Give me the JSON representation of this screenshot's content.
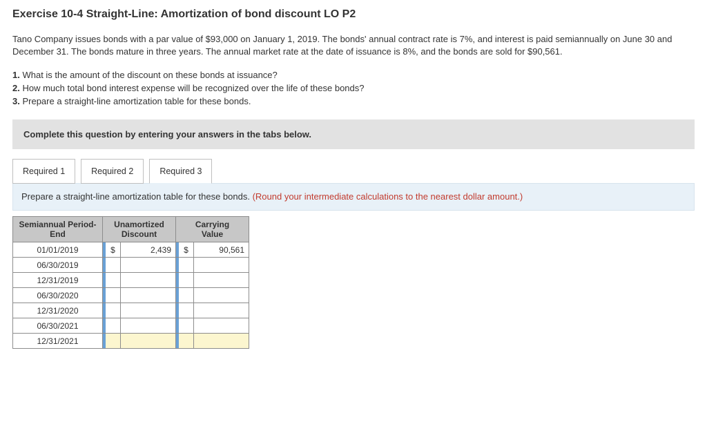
{
  "title": "Exercise 10-4 Straight-Line: Amortization of bond discount LO P2",
  "problem": "Tano Company issues bonds with a par value of $93,000 on January 1, 2019. The bonds' annual contract rate is 7%, and interest is paid semiannually on June 30 and December 31. The bonds mature in three years. The annual market rate at the date of issuance is 8%, and the bonds are sold for $90,561.",
  "questions": {
    "q1": "What is the amount of the discount on these bonds at issuance?",
    "q2": "How much total bond interest expense will be recognized over the life of these bonds?",
    "q3": "Prepare a straight-line amortization table for these bonds."
  },
  "instruction_bar": "Complete this question by entering your answers in the tabs below.",
  "tabs": {
    "t1": "Required 1",
    "t2": "Required 2",
    "t3": "Required 3"
  },
  "active_tab_prompt": {
    "main": "Prepare a straight-line amortization table for these bonds. ",
    "hint": "(Round your intermediate calculations to the nearest dollar amount.)"
  },
  "table": {
    "headers": {
      "period": "Semiannual Period-\nEnd",
      "discount": "Unamortized\nDiscount",
      "carrying": "Carrying\nValue"
    },
    "rows": [
      {
        "date": "01/01/2019",
        "disc_cur": "$",
        "disc_val": "2,439",
        "carry_cur": "$",
        "carry_val": "90,561",
        "hl": false
      },
      {
        "date": "06/30/2019",
        "disc_cur": "",
        "disc_val": "",
        "carry_cur": "",
        "carry_val": "",
        "hl": false
      },
      {
        "date": "12/31/2019",
        "disc_cur": "",
        "disc_val": "",
        "carry_cur": "",
        "carry_val": "",
        "hl": false
      },
      {
        "date": "06/30/2020",
        "disc_cur": "",
        "disc_val": "",
        "carry_cur": "",
        "carry_val": "",
        "hl": false
      },
      {
        "date": "12/31/2020",
        "disc_cur": "",
        "disc_val": "",
        "carry_cur": "",
        "carry_val": "",
        "hl": false
      },
      {
        "date": "06/30/2021",
        "disc_cur": "",
        "disc_val": "",
        "carry_cur": "",
        "carry_val": "",
        "hl": false
      },
      {
        "date": "12/31/2021",
        "disc_cur": "",
        "disc_val": "",
        "carry_cur": "",
        "carry_val": "",
        "hl": true
      }
    ]
  },
  "colors": {
    "instruction_bg": "#e2e2e2",
    "tab_panel_bg": "#e8f1f8",
    "hint_color": "#c23b2e",
    "table_header_bg": "#c7c7c7",
    "marker_color": "#6aa1d6",
    "highlight_bg": "#fcf6cf"
  }
}
